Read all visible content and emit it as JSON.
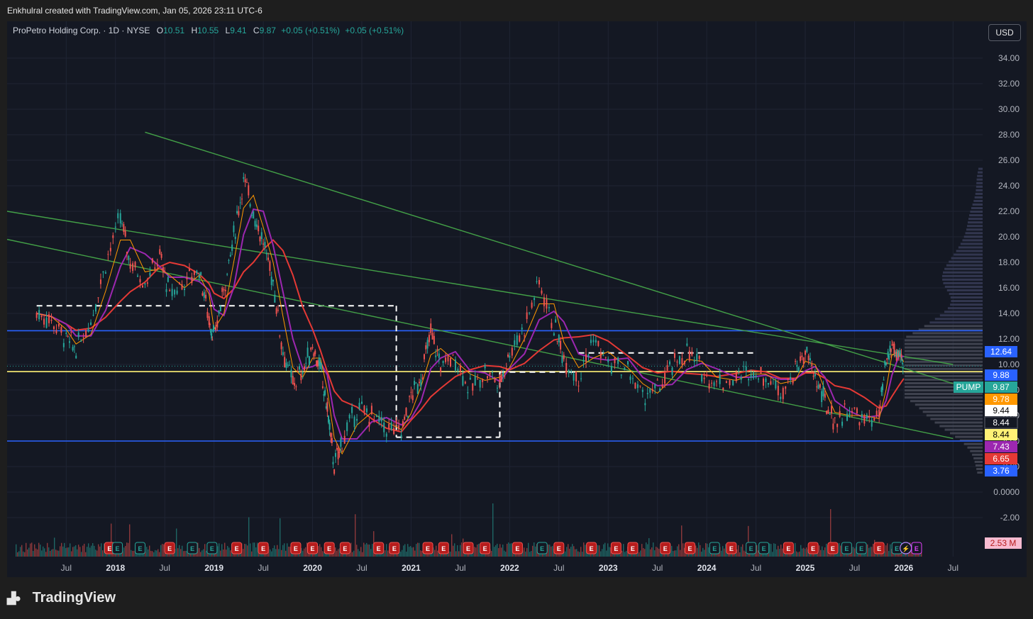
{
  "header": {
    "credit": "Enkhulral created with TradingView.com, Jan 05, 2026 23:11 UTC-6"
  },
  "legend": {
    "symbol": "ProPetro Holding Corp. · 1D · NYSE",
    "open_label": "O",
    "open": "10.51",
    "high_label": "H",
    "high": "10.55",
    "low_label": "L",
    "low": "9.41",
    "close_label": "C",
    "close": "9.87",
    "change": "+0.05 (+0.51%)",
    "change2": "+0.05 (+0.51%)"
  },
  "currency_button": "USD",
  "footer": {
    "brand": "TradingView"
  },
  "colors": {
    "up": "#26a69a",
    "down": "#ef5350",
    "background": "#141823",
    "grid": "#1f2433"
  },
  "chart_data": {
    "type": "line",
    "title": "ProPetro Holding Corp. · 1D · NYSE",
    "ylim": [
      -3,
      36
    ],
    "y_ticks": [
      "34.00",
      "32.00",
      "30.00",
      "28.00",
      "26.00",
      "24.00",
      "22.00",
      "20.00",
      "18.00",
      "16.00",
      "14.00",
      "12.00",
      "10.00",
      "8.00",
      "6.00",
      "4.00",
      "2.00",
      "0.0000",
      "-2.00"
    ],
    "x_ticks": [
      {
        "label": "Jul",
        "t": 2017.5
      },
      {
        "label": "2018",
        "t": 2018.0,
        "year": true
      },
      {
        "label": "Jul",
        "t": 2018.5
      },
      {
        "label": "2019",
        "t": 2019.0,
        "year": true
      },
      {
        "label": "Jul",
        "t": 2019.5
      },
      {
        "label": "2020",
        "t": 2020.0,
        "year": true
      },
      {
        "label": "Jul",
        "t": 2020.5
      },
      {
        "label": "2021",
        "t": 2021.0,
        "year": true
      },
      {
        "label": "Jul",
        "t": 2021.5
      },
      {
        "label": "2022",
        "t": 2022.0,
        "year": true
      },
      {
        "label": "Jul",
        "t": 2022.5
      },
      {
        "label": "2023",
        "t": 2023.0,
        "year": true
      },
      {
        "label": "Jul",
        "t": 2023.5
      },
      {
        "label": "2024",
        "t": 2024.0,
        "year": true
      },
      {
        "label": "Jul",
        "t": 2024.5
      },
      {
        "label": "2025",
        "t": 2025.0,
        "year": true
      },
      {
        "label": "Jul",
        "t": 2025.5
      },
      {
        "label": "2026",
        "t": 2026.0,
        "year": true
      },
      {
        "label": "Jul",
        "t": 2026.5
      }
    ],
    "price_series": {
      "name": "PUMP",
      "points": [
        [
          2017.2,
          14.0
        ],
        [
          2017.35,
          13.5
        ],
        [
          2017.5,
          12.0
        ],
        [
          2017.6,
          11.2
        ],
        [
          2017.75,
          13.5
        ],
        [
          2017.9,
          18.0
        ],
        [
          2018.05,
          21.5
        ],
        [
          2018.15,
          18.0
        ],
        [
          2018.3,
          16.5
        ],
        [
          2018.45,
          18.5
        ],
        [
          2018.55,
          15.5
        ],
        [
          2018.7,
          16.5
        ],
        [
          2018.85,
          17.5
        ],
        [
          2018.95,
          13.5
        ],
        [
          2019.0,
          12.0
        ],
        [
          2019.1,
          16.0
        ],
        [
          2019.2,
          20.0
        ],
        [
          2019.3,
          24.5
        ],
        [
          2019.4,
          22.0
        ],
        [
          2019.5,
          19.5
        ],
        [
          2019.6,
          16.5
        ],
        [
          2019.7,
          11.0
        ],
        [
          2019.8,
          8.5
        ],
        [
          2019.9,
          9.5
        ],
        [
          2020.0,
          11.5
        ],
        [
          2020.08,
          9.5
        ],
        [
          2020.15,
          6.5
        ],
        [
          2020.22,
          2.0
        ],
        [
          2020.3,
          4.0
        ],
        [
          2020.45,
          6.5
        ],
        [
          2020.6,
          6.0
        ],
        [
          2020.75,
          5.0
        ],
        [
          2020.9,
          4.8
        ],
        [
          2021.0,
          7.5
        ],
        [
          2021.1,
          9.0
        ],
        [
          2021.2,
          12.5
        ],
        [
          2021.3,
          10.0
        ],
        [
          2021.45,
          10.5
        ],
        [
          2021.6,
          8.0
        ],
        [
          2021.75,
          9.5
        ],
        [
          2021.9,
          8.5
        ],
        [
          2022.0,
          11.0
        ],
        [
          2022.15,
          13.0
        ],
        [
          2022.3,
          16.5
        ],
        [
          2022.45,
          13.0
        ],
        [
          2022.55,
          10.5
        ],
        [
          2022.7,
          9.0
        ],
        [
          2022.85,
          12.0
        ],
        [
          2023.0,
          10.0
        ],
        [
          2023.2,
          9.5
        ],
        [
          2023.35,
          7.5
        ],
        [
          2023.5,
          8.0
        ],
        [
          2023.65,
          9.8
        ],
        [
          2023.8,
          11.0
        ],
        [
          2023.95,
          9.5
        ],
        [
          2024.1,
          8.5
        ],
        [
          2024.3,
          9.0
        ],
        [
          2024.45,
          9.5
        ],
        [
          2024.6,
          9.0
        ],
        [
          2024.75,
          8.0
        ],
        [
          2024.9,
          9.5
        ],
        [
          2025.0,
          11.0
        ],
        [
          2025.1,
          9.0
        ],
        [
          2025.2,
          7.0
        ],
        [
          2025.3,
          5.5
        ],
        [
          2025.45,
          6.5
        ],
        [
          2025.6,
          5.5
        ],
        [
          2025.75,
          6.0
        ],
        [
          2025.82,
          10.0
        ],
        [
          2025.88,
          11.5
        ],
        [
          2025.95,
          10.5
        ],
        [
          2026.0,
          9.87
        ]
      ]
    },
    "trendlines": [
      {
        "from": [
          2018.3,
          28.2
        ],
        "to": [
          2026.5,
          8.5
        ]
      },
      {
        "from": [
          2016.9,
          22.0
        ],
        "to": [
          2026.5,
          10.0
        ]
      },
      {
        "from": [
          2016.9,
          19.8
        ],
        "to": [
          2026.5,
          4.2
        ]
      }
    ],
    "horizontal_levels": [
      {
        "y": 12.64,
        "color": "#2962ff"
      },
      {
        "y": 9.44,
        "color": "#fff176"
      },
      {
        "y": 4.0,
        "color": "#2962ff"
      }
    ],
    "price_badges": [
      {
        "label": "12.64",
        "y": 12.64,
        "bg": "#2962ff",
        "fg": "#ffffff"
      },
      {
        "label": "9.88",
        "y": 9.88,
        "bg": "#2962ff",
        "fg": "#ffffff"
      },
      {
        "label": "9.87",
        "y": 9.87,
        "bg": "#26a69a",
        "fg": "#ffffff",
        "tag": "PUMP"
      },
      {
        "label": "9.78",
        "y": 9.78,
        "bg": "#ff9800",
        "fg": "#ffffff"
      },
      {
        "label": "9.44",
        "y": 9.44,
        "bg": "#ffffff",
        "fg": "#000000"
      },
      {
        "label": "8.44",
        "y": 8.44,
        "bg": "#141823",
        "fg": "#ffffff"
      },
      {
        "label": "8.44",
        "y": 8.44,
        "bg": "#fff176",
        "fg": "#000000"
      },
      {
        "label": "7.43",
        "y": 7.43,
        "bg": "#9c27b0",
        "fg": "#ffffff"
      },
      {
        "label": "6.65",
        "y": 6.65,
        "bg": "#e53935",
        "fg": "#ffffff"
      },
      {
        "label": "3.76",
        "y": 3.76,
        "bg": "#2962ff",
        "fg": "#ffffff"
      }
    ],
    "volume_badge": "2.53 M",
    "event_markers": [
      {
        "t": 2017.94,
        "type": "E",
        "kind": "earnings-miss"
      },
      {
        "t": 2018.02,
        "type": "E",
        "kind": "earnings-beat"
      },
      {
        "t": 2018.25,
        "type": "E",
        "kind": "earnings-beat"
      },
      {
        "t": 2018.55,
        "type": "E",
        "kind": "earnings-miss"
      },
      {
        "t": 2018.78,
        "type": "E",
        "kind": "earnings-beat"
      },
      {
        "t": 2018.98,
        "type": "E",
        "kind": "earnings-beat"
      },
      {
        "t": 2019.23,
        "type": "E",
        "kind": "earnings-miss"
      },
      {
        "t": 2019.5,
        "type": "E",
        "kind": "earnings-miss"
      },
      {
        "t": 2019.83,
        "type": "E",
        "kind": "earnings-miss"
      },
      {
        "t": 2020.0,
        "type": "E",
        "kind": "earnings-miss"
      },
      {
        "t": 2020.17,
        "type": "E",
        "kind": "earnings-miss"
      },
      {
        "t": 2020.33,
        "type": "E",
        "kind": "earnings-miss"
      },
      {
        "t": 2020.67,
        "type": "E",
        "kind": "earnings-miss"
      },
      {
        "t": 2020.83,
        "type": "E",
        "kind": "earnings-miss"
      },
      {
        "t": 2021.17,
        "type": "E",
        "kind": "earnings-miss"
      },
      {
        "t": 2021.33,
        "type": "E",
        "kind": "earnings-miss"
      },
      {
        "t": 2021.58,
        "type": "E",
        "kind": "earnings-miss"
      },
      {
        "t": 2021.75,
        "type": "E",
        "kind": "earnings-miss"
      },
      {
        "t": 2022.08,
        "type": "E",
        "kind": "earnings-miss"
      },
      {
        "t": 2022.33,
        "type": "E",
        "kind": "earnings-beat"
      },
      {
        "t": 2022.5,
        "type": "E",
        "kind": "earnings-miss"
      },
      {
        "t": 2022.83,
        "type": "E",
        "kind": "earnings-miss"
      },
      {
        "t": 2023.08,
        "type": "E",
        "kind": "earnings-miss"
      },
      {
        "t": 2023.25,
        "type": "E",
        "kind": "earnings-miss"
      },
      {
        "t": 2023.58,
        "type": "E",
        "kind": "earnings-miss"
      },
      {
        "t": 2023.83,
        "type": "E",
        "kind": "earnings-miss"
      },
      {
        "t": 2024.08,
        "type": "E",
        "kind": "earnings-beat"
      },
      {
        "t": 2024.25,
        "type": "E",
        "kind": "earnings-miss"
      },
      {
        "t": 2024.45,
        "type": "E",
        "kind": "earnings-beat"
      },
      {
        "t": 2024.58,
        "type": "E",
        "kind": "earnings-beat"
      },
      {
        "t": 2024.83,
        "type": "E",
        "kind": "earnings-miss"
      },
      {
        "t": 2025.08,
        "type": "E",
        "kind": "earnings-miss"
      },
      {
        "t": 2025.28,
        "type": "E",
        "kind": "earnings-miss"
      },
      {
        "t": 2025.42,
        "type": "E",
        "kind": "earnings-beat"
      },
      {
        "t": 2025.57,
        "type": "E",
        "kind": "earnings-beat"
      },
      {
        "t": 2025.75,
        "type": "E",
        "kind": "earnings-miss"
      },
      {
        "t": 2025.93,
        "type": "E",
        "kind": "earnings-beat"
      },
      {
        "t": 2026.02,
        "type": "lightning",
        "kind": "split"
      },
      {
        "t": 2026.13,
        "type": "E",
        "kind": "earnings-upcoming"
      }
    ]
  }
}
